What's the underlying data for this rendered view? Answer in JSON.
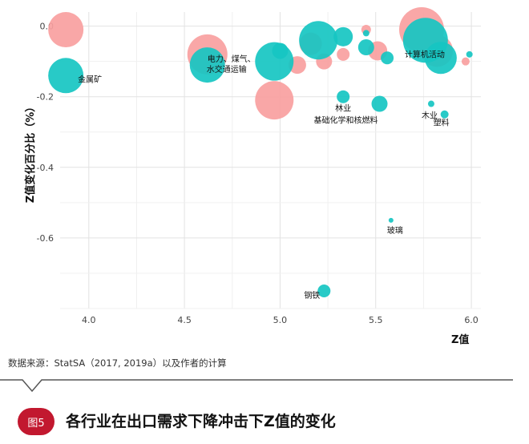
{
  "chart_data": {
    "type": "scatter",
    "xlabel": "Z值",
    "ylabel": "Z值变化百分比（%）",
    "xlim": [
      3.85,
      6.05
    ],
    "ylim": [
      -0.8,
      0.04
    ],
    "x_ticks": [
      "4.0",
      "4.5",
      "5.0",
      "5.5",
      "6.0"
    ],
    "x_tick_values": [
      4.0,
      4.5,
      5.0,
      5.5,
      6.0
    ],
    "y_ticks": [
      "0.0",
      "-0.2",
      "-0.4",
      "-0.6"
    ],
    "y_tick_values": [
      0.0,
      -0.2,
      -0.4,
      -0.6
    ],
    "grid": true,
    "colors": {
      "pink": "#f9a0a0",
      "teal": "#16c6c2"
    },
    "series": [
      {
        "color_key": "pink",
        "points": [
          {
            "x": 3.88,
            "y": -0.01,
            "size": 22,
            "label": ""
          },
          {
            "x": 4.62,
            "y": -0.08,
            "size": 25,
            "label": ""
          },
          {
            "x": 4.97,
            "y": -0.21,
            "size": 24,
            "label": ""
          },
          {
            "x": 5.09,
            "y": -0.11,
            "size": 11,
            "label": ""
          },
          {
            "x": 5.16,
            "y": -0.05,
            "size": 14,
            "label": ""
          },
          {
            "x": 5.23,
            "y": -0.1,
            "size": 10,
            "label": ""
          },
          {
            "x": 5.33,
            "y": -0.08,
            "size": 8,
            "label": ""
          },
          {
            "x": 5.45,
            "y": -0.01,
            "size": 6,
            "label": ""
          },
          {
            "x": 5.51,
            "y": -0.07,
            "size": 12,
            "label": ""
          },
          {
            "x": 5.74,
            "y": -0.01,
            "size": 28,
            "label": ""
          },
          {
            "x": 5.82,
            "y": -0.07,
            "size": 20,
            "label": ""
          },
          {
            "x": 5.97,
            "y": -0.1,
            "size": 5,
            "label": ""
          }
        ]
      },
      {
        "color_key": "teal",
        "points": [
          {
            "x": 3.88,
            "y": -0.14,
            "size": 22,
            "label": "金属矿"
          },
          {
            "x": 4.62,
            "y": -0.11,
            "size": 22,
            "label": "电力、煤气、水交通运输"
          },
          {
            "x": 4.97,
            "y": -0.1,
            "size": 24,
            "label": ""
          },
          {
            "x": 5.0,
            "y": -0.07,
            "size": 10,
            "label": ""
          },
          {
            "x": 5.2,
            "y": -0.04,
            "size": 24,
            "label": ""
          },
          {
            "x": 5.33,
            "y": -0.03,
            "size": 12,
            "label": ""
          },
          {
            "x": 5.33,
            "y": -0.2,
            "size": 8,
            "label": "林业"
          },
          {
            "x": 5.45,
            "y": -0.02,
            "size": 4,
            "label": ""
          },
          {
            "x": 5.45,
            "y": -0.06,
            "size": 10,
            "label": ""
          },
          {
            "x": 5.52,
            "y": -0.22,
            "size": 10,
            "label": "基础化学和核燃料"
          },
          {
            "x": 5.56,
            "y": -0.09,
            "size": 8,
            "label": ""
          },
          {
            "x": 5.76,
            "y": -0.04,
            "size": 28,
            "label": ""
          },
          {
            "x": 5.84,
            "y": -0.09,
            "size": 20,
            "label": "计算机活动"
          },
          {
            "x": 5.79,
            "y": -0.22,
            "size": 4,
            "label": "木业"
          },
          {
            "x": 5.86,
            "y": -0.25,
            "size": 5,
            "label": "塑料"
          },
          {
            "x": 5.58,
            "y": -0.55,
            "size": 3,
            "label": "玻璃"
          },
          {
            "x": 5.23,
            "y": -0.75,
            "size": 8,
            "label": "钢铁"
          },
          {
            "x": 5.99,
            "y": -0.08,
            "size": 4,
            "label": ""
          }
        ]
      }
    ]
  },
  "source_note": "数据来源：StatSA（2017, 2019a）以及作者的计算",
  "figure_badge": "图5",
  "figure_title": "各行业在出口需求下降冲击下Z值的变化"
}
